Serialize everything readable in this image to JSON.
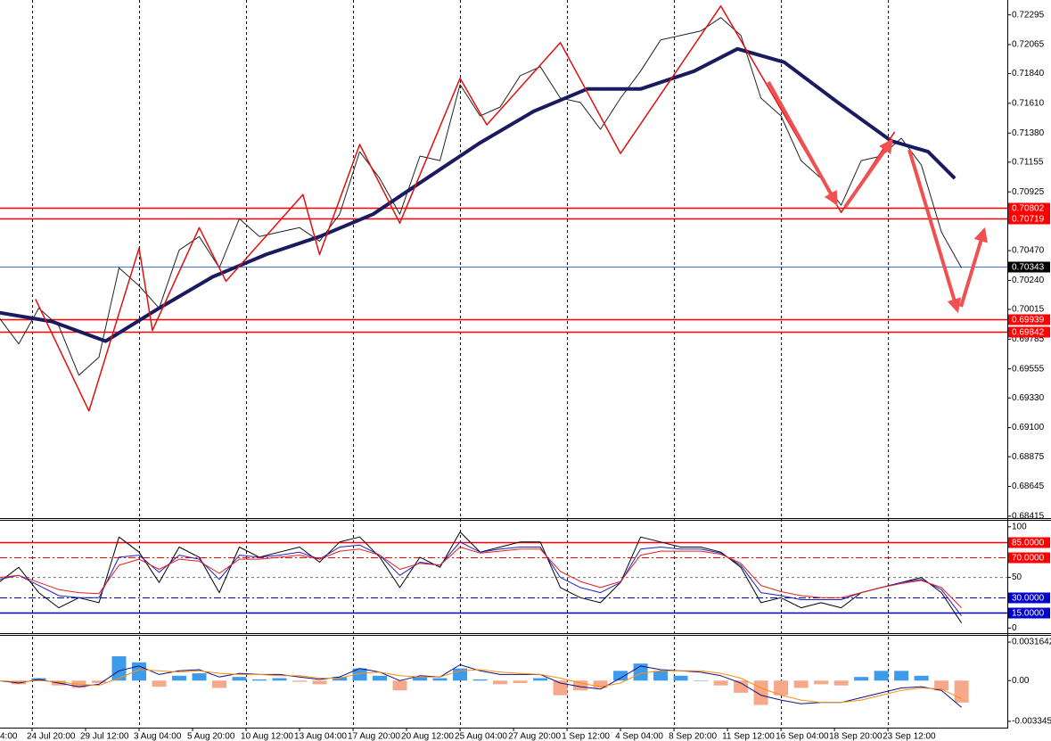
{
  "chart_data": [
    {
      "type": "line",
      "xlim": [
        6.4,
        307.7
      ],
      "x": [
        6,
        12,
        18,
        24,
        30,
        36,
        42,
        48,
        54,
        60,
        66,
        72,
        78,
        84,
        90,
        96,
        102,
        108,
        114,
        120,
        126,
        132,
        138,
        144,
        150,
        156,
        162,
        168,
        174,
        180,
        186,
        192,
        198,
        204,
        210,
        216,
        222,
        228,
        234,
        240,
        246,
        252,
        258,
        264,
        270,
        276,
        282,
        288,
        294
      ],
      "xticks": [
        {
          "value": 0,
          "label": "4:00"
        },
        {
          "value": 16,
          "label": "24 Jul 20:00"
        },
        {
          "value": 32,
          "label": "29 Jul 12:00"
        },
        {
          "value": 48,
          "label": "3 Aug 04:00"
        },
        {
          "value": 64,
          "label": "5 Aug 20:00"
        },
        {
          "value": 80,
          "label": "10 Aug 12:00"
        },
        {
          "value": 96,
          "label": "13 Aug 04:00"
        },
        {
          "value": 112,
          "label": "17 Aug 20:00"
        },
        {
          "value": 128,
          "label": "20 Aug 12:00"
        },
        {
          "value": 144,
          "label": "25 Aug 04:00"
        },
        {
          "value": 160,
          "label": "27 Aug 20:00"
        },
        {
          "value": 176,
          "label": "1 Sep 12:00"
        },
        {
          "value": 192,
          "label": "4 Sep 04:00"
        },
        {
          "value": 208,
          "label": "8 Sep 20:00"
        },
        {
          "value": 224,
          "label": "11 Sep 12:00"
        },
        {
          "value": 240,
          "label": "16 Sep 04:00"
        },
        {
          "value": 256,
          "label": "18 Sep 20:00"
        },
        {
          "value": 272,
          "label": "23 Sep 12:00"
        }
      ],
      "xgrid": [
        16,
        48,
        80,
        112,
        144,
        176,
        208,
        240,
        272
      ],
      "ylim": [
        0.684,
        0.7241
      ],
      "yticks": [
        0.72295,
        {
          "value": 0.72065,
          "label": "0.72065"
        },
        {
          "value": 0.7184,
          "label": "0.71840"
        },
        {
          "value": 0.7161,
          "label": "0.71610"
        },
        {
          "value": 0.7138,
          "label": "0.71380"
        },
        0.71155,
        0.70925,
        {
          "value": 0.7047,
          "label": "0.70470"
        },
        {
          "value": 0.7024,
          "label": "0.70240"
        },
        0.70015,
        0.69785,
        0.69555,
        {
          "value": 0.6933,
          "label": "0.69330"
        },
        {
          "value": 0.691,
          "label": "0.69100"
        },
        0.68875,
        0.68645,
        0.68415
      ],
      "levels": [
        {
          "value": 0.70802,
          "color": "#ff0000"
        },
        {
          "value": 0.70719,
          "color": "#ff0000"
        },
        {
          "value": 0.70343,
          "color": "#000000",
          "line": "#4a6fd8"
        },
        {
          "value": 0.69939,
          "color": "#ff0000"
        },
        {
          "value": 0.69842,
          "color": "#ff0000"
        }
      ],
      "series": [
        {
          "color": "#222222",
          "values": [
            0.69956,
            0.69748,
            0.70025,
            0.69887,
            0.69506,
            0.69645,
            0.70337,
            0.70198,
            0.70025,
            0.70475,
            0.70579,
            0.70337,
            0.70717,
            0.70579,
            0.70614,
            0.70648,
            0.70544,
            0.70752,
            0.71236,
            0.71029,
            0.70752,
            0.71202,
            0.71167,
            0.71755,
            0.71513,
            0.71582,
            0.71824,
            0.71894,
            0.71651,
            0.71617,
            0.71409,
            0.71651,
            0.71859,
            0.72101,
            0.72136,
            0.7217,
            0.72274,
            0.72136,
            0.71651,
            0.71513,
            0.71167,
            0.71029,
            0.70821,
            0.71167,
            0.71202,
            0.7134,
            0.71132,
            0.70614,
            0.70337
          ]
        },
        {
          "color": "#1a1a5e",
          "width": 4,
          "x": [
            6,
            22,
            38,
            54,
            70,
            86,
            102,
            118,
            134,
            150,
            166,
            182,
            198,
            214,
            227,
            241,
            257,
            273,
            284,
            292
          ],
          "values": [
            0.69991,
            0.69921,
            0.69769,
            0.70025,
            0.70267,
            0.7044,
            0.70579,
            0.70752,
            0.71029,
            0.71305,
            0.71548,
            0.71721,
            0.71721,
            0.71859,
            0.72032,
            0.71928,
            0.71617,
            0.71319,
            0.71236,
            0.71029
          ]
        },
        {
          "color": "#e01010",
          "width": 1.5,
          "x": [
            17,
            33,
            48,
            52,
            66,
            74,
            97,
            102,
            114,
            126,
            144,
            152,
            174,
            192,
            222,
            258,
            274
          ],
          "values": [
            0.70095,
            0.69229,
            0.70489,
            0.69852,
            0.70648,
            0.70233,
            0.70904,
            0.7044,
            0.71292,
            0.70683,
            0.71804,
            0.71444,
            0.7208,
            0.71222,
            0.72364,
            0.70766,
            0.71389
          ]
        }
      ]
    },
    {
      "type": "line",
      "xlim": [
        6.4,
        307.7
      ],
      "x": [
        6,
        12,
        18,
        24,
        30,
        36,
        42,
        48,
        54,
        60,
        66,
        72,
        78,
        84,
        90,
        96,
        102,
        108,
        114,
        120,
        126,
        132,
        138,
        144,
        150,
        156,
        162,
        168,
        174,
        180,
        186,
        192,
        198,
        204,
        210,
        216,
        222,
        228,
        234,
        240,
        246,
        252,
        258,
        264,
        270,
        276,
        282,
        288,
        294
      ],
      "ylim": [
        -5,
        106
      ],
      "yticks": [
        100,
        50,
        0
      ],
      "levels": [
        {
          "value": 85,
          "label": "85.0000",
          "color": "#ff0000",
          "dash": "none"
        },
        {
          "value": 70,
          "label": "70.0000",
          "color": "#ff0000",
          "dash": "8,3,2,3"
        },
        {
          "value": 30,
          "label": "30.0000",
          "color": "#0000cc",
          "dash": "8,3,2,3"
        },
        {
          "value": 15,
          "label": "15.0000",
          "color": "#0000cc",
          "dash": "none"
        }
      ],
      "midline": 50,
      "series": [
        {
          "color": "#000000",
          "values": [
            45,
            60,
            35,
            20,
            30,
            25,
            90,
            75,
            45,
            80,
            70,
            35,
            80,
            70,
            75,
            80,
            65,
            85,
            90,
            70,
            40,
            70,
            60,
            95,
            75,
            80,
            85,
            85,
            40,
            30,
            25,
            45,
            90,
            85,
            80,
            80,
            75,
            60,
            25,
            30,
            20,
            25,
            20,
            35,
            40,
            45,
            50,
            35,
            5
          ]
        },
        {
          "color": "#2020c0",
          "values": [
            48,
            52,
            42,
            32,
            30,
            30,
            70,
            72,
            55,
            72,
            68,
            48,
            72,
            70,
            72,
            75,
            68,
            80,
            82,
            72,
            52,
            65,
            62,
            85,
            75,
            78,
            80,
            80,
            50,
            40,
            35,
            45,
            78,
            80,
            78,
            78,
            74,
            62,
            35,
            32,
            28,
            28,
            28,
            35,
            40,
            45,
            48,
            38,
            12
          ]
        },
        {
          "color": "#e02020",
          "values": [
            50,
            52,
            45,
            38,
            35,
            34,
            62,
            68,
            58,
            68,
            66,
            54,
            68,
            68,
            70,
            72,
            68,
            76,
            78,
            72,
            58,
            64,
            62,
            80,
            74,
            76,
            78,
            78,
            56,
            46,
            40,
            46,
            72,
            76,
            76,
            76,
            73,
            64,
            42,
            36,
            32,
            30,
            30,
            35,
            40,
            44,
            47,
            40,
            20
          ]
        }
      ]
    },
    {
      "type": "bar",
      "xlim": [
        6.4,
        307.7
      ],
      "x": [
        6,
        12,
        18,
        24,
        30,
        36,
        42,
        48,
        54,
        60,
        66,
        72,
        78,
        84,
        90,
        96,
        102,
        108,
        114,
        120,
        126,
        132,
        138,
        144,
        150,
        156,
        162,
        168,
        174,
        180,
        186,
        192,
        198,
        204,
        210,
        216,
        222,
        228,
        234,
        240,
        246,
        252,
        258,
        264,
        270,
        276,
        282,
        288,
        294
      ],
      "ylim": [
        -0.003863,
        0.003682
      ],
      "yticks": [
        0.0031642,
        {
          "value": 0,
          "label": "0.00"
        },
        -0.003345
      ],
      "color": "#3d9be9",
      "negative_color": "#f7a88a",
      "values": [
        0,
        -0.0003,
        0.0002,
        -0.0004,
        -0.0006,
        -0.0002,
        0.002,
        0.0015,
        -0.0005,
        0.0004,
        0.0006,
        -0.0006,
        0.0003,
        0.0001,
        0.0002,
        -0.0001,
        -0.0003,
        0.0003,
        0.001,
        0.0004,
        -0.0008,
        0.0003,
        0.0002,
        0.001,
        0.0001,
        -0.0003,
        -0.0002,
        0.0002,
        -0.0012,
        -0.0008,
        -0.0006,
        0.0008,
        0.0014,
        0.0008,
        0.0004,
        0,
        -0.0004,
        -0.001,
        -0.002,
        -0.0012,
        -0.0006,
        -0.0003,
        -0.0004,
        0.0003,
        0.0008,
        0.0008,
        0.0004,
        -0.0008,
        -0.0018
      ],
      "series": [
        {
          "color": "#101080",
          "values": [
            0,
            -0.0002,
            0.0001,
            -0.0002,
            -0.0005,
            -0.0003,
            0.0008,
            0.0012,
            0.0005,
            0.0008,
            0.0009,
            0.0003,
            0.0006,
            0.0005,
            0.0005,
            0.0003,
            0.0001,
            0.0003,
            0.001,
            0.0007,
            0,
            0.0004,
            0.0003,
            0.0013,
            0.0008,
            0.0005,
            0.0005,
            0.0005,
            -0.0002,
            -0.0005,
            -0.0007,
            0.0002,
            0.0012,
            0.0009,
            0.0008,
            0.0007,
            0.0004,
            -0.0002,
            -0.0012,
            -0.0016,
            -0.0019,
            -0.0018,
            -0.0018,
            -0.0014,
            -0.001,
            -0.0006,
            -0.0005,
            -0.0008,
            -0.0022
          ]
        },
        {
          "color": "#ff8c10",
          "values": [
            0,
            -0.0001,
            0,
            -0.0001,
            -0.0003,
            -0.0004,
            0.0002,
            0.0009,
            0.0008,
            0.0007,
            0.0008,
            0.0006,
            0.0005,
            0.0005,
            0.0004,
            0.0004,
            0.0002,
            0.0002,
            0.0006,
            0.0007,
            0.0004,
            0.0003,
            0.0003,
            0.0008,
            0.0009,
            0.0007,
            0.0006,
            0.0005,
            0.0002,
            -0.0002,
            -0.0005,
            -0.0002,
            0.0006,
            0.0008,
            0.0008,
            0.0008,
            0.0006,
            0.0002,
            -0.0006,
            -0.0012,
            -0.0016,
            -0.0018,
            -0.0018,
            -0.0016,
            -0.0012,
            -0.0008,
            -0.0006,
            -0.0007,
            -0.0015
          ]
        }
      ]
    }
  ]
}
